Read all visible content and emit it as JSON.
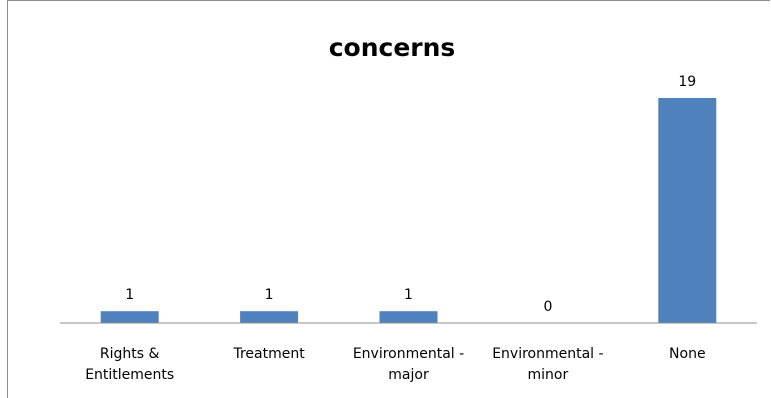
{
  "chart_data": {
    "type": "bar",
    "title": "concerns",
    "categories": [
      [
        "Rights &",
        "Entitlements"
      ],
      [
        "Treatment"
      ],
      [
        "Environmental -",
        "major"
      ],
      [
        "Environmental -",
        "minor"
      ],
      [
        "None"
      ]
    ],
    "values": [
      1,
      1,
      1,
      0,
      19
    ],
    "data_labels": [
      "1",
      "1",
      "1",
      "0",
      "19"
    ],
    "bar_color": "#4f81bd",
    "ylim": [
      0,
      19
    ],
    "grid": false,
    "legend": "none",
    "xlabel": "",
    "ylabel": ""
  }
}
